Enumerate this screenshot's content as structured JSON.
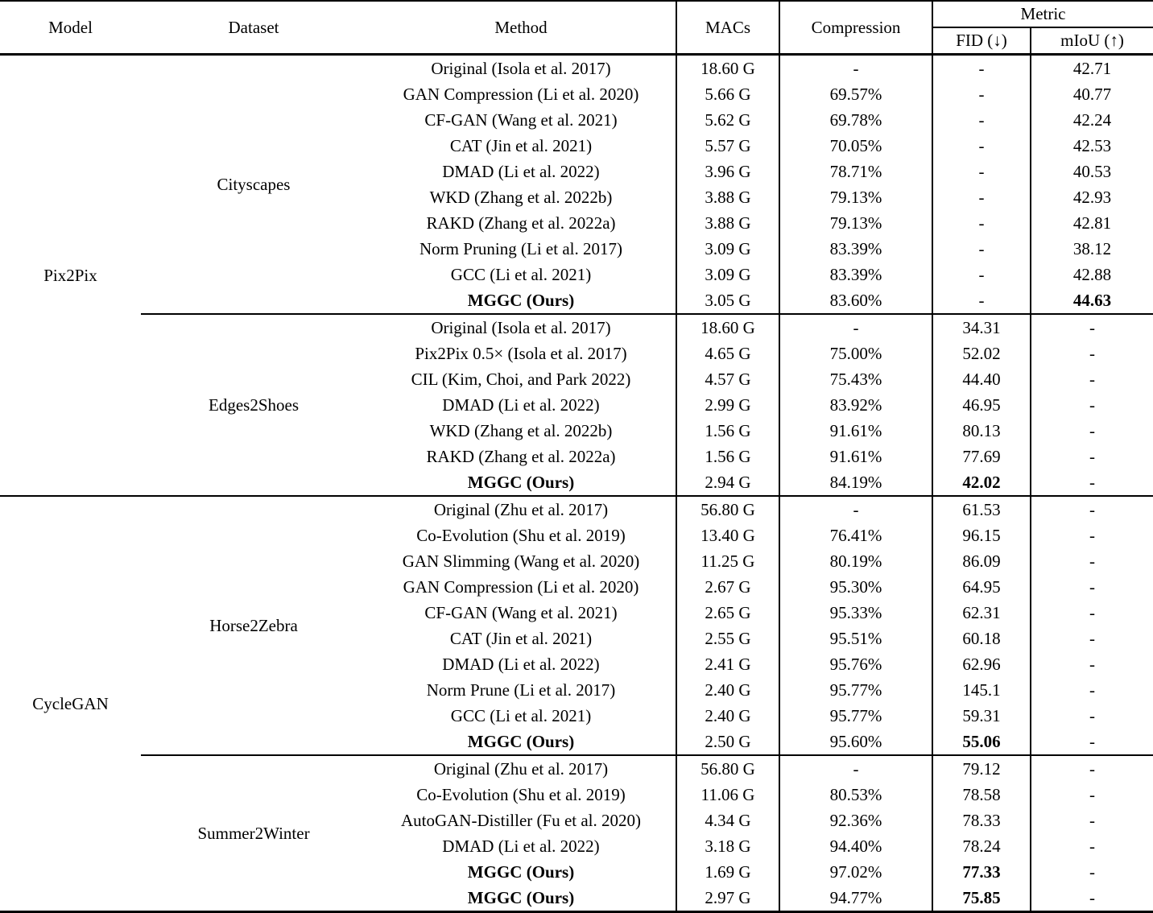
{
  "table": {
    "header": {
      "model": "Model",
      "dataset": "Dataset",
      "method": "Method",
      "macs": "MACs",
      "compression": "Compression",
      "metric_group": "Metric",
      "fid": "FID (↓)",
      "miou": "mIoU (↑)"
    },
    "groups": [
      {
        "model": "Pix2Pix",
        "datasets": [
          {
            "name": "Cityscapes",
            "rows": [
              {
                "method": "Original (Isola et al. 2017)",
                "macs": "18.60 G",
                "compression": "-",
                "fid": "-",
                "miou": "42.71"
              },
              {
                "method": "GAN Compression (Li et al. 2020)",
                "macs": "5.66 G",
                "compression": "69.57%",
                "fid": "-",
                "miou": "40.77"
              },
              {
                "method": "CF-GAN (Wang et al. 2021)",
                "macs": "5.62 G",
                "compression": "69.78%",
                "fid": "-",
                "miou": "42.24"
              },
              {
                "method": "CAT (Jin et al. 2021)",
                "macs": "5.57 G",
                "compression": "70.05%",
                "fid": "-",
                "miou": "42.53"
              },
              {
                "method": "DMAD (Li et al. 2022)",
                "macs": "3.96 G",
                "compression": "78.71%",
                "fid": "-",
                "miou": "40.53"
              },
              {
                "method": "WKD (Zhang et al. 2022b)",
                "macs": "3.88 G",
                "compression": "79.13%",
                "fid": "-",
                "miou": "42.93"
              },
              {
                "method": "RAKD (Zhang et al. 2022a)",
                "macs": "3.88 G",
                "compression": "79.13%",
                "fid": "-",
                "miou": "42.81"
              },
              {
                "method": "Norm Pruning (Li et al. 2017)",
                "macs": "3.09 G",
                "compression": "83.39%",
                "fid": "-",
                "miou": "38.12"
              },
              {
                "method": "GCC (Li et al. 2021)",
                "macs": "3.09 G",
                "compression": "83.39%",
                "fid": "-",
                "miou": "42.88"
              },
              {
                "method": "MGGC (Ours)",
                "macs": "3.05 G",
                "compression": "83.60%",
                "fid": "-",
                "miou": "44.63",
                "bold_method": true,
                "bold_miou": true
              }
            ]
          },
          {
            "name": "Edges2Shoes",
            "rows": [
              {
                "method": "Original (Isola et al. 2017)",
                "macs": "18.60 G",
                "compression": "-",
                "fid": "34.31",
                "miou": "-"
              },
              {
                "method": "Pix2Pix 0.5× (Isola et al. 2017)",
                "macs": "4.65 G",
                "compression": "75.00%",
                "fid": "52.02",
                "miou": "-"
              },
              {
                "method": "CIL (Kim, Choi, and Park 2022)",
                "macs": "4.57 G",
                "compression": "75.43%",
                "fid": "44.40",
                "miou": "-"
              },
              {
                "method": "DMAD (Li et al. 2022)",
                "macs": "2.99 G",
                "compression": "83.92%",
                "fid": "46.95",
                "miou": "-"
              },
              {
                "method": "WKD (Zhang et al. 2022b)",
                "macs": "1.56 G",
                "compression": "91.61%",
                "fid": "80.13",
                "miou": "-"
              },
              {
                "method": "RAKD (Zhang et al. 2022a)",
                "macs": "1.56 G",
                "compression": "91.61%",
                "fid": "77.69",
                "miou": "-"
              },
              {
                "method": "MGGC (Ours)",
                "macs": "2.94 G",
                "compression": "84.19%",
                "fid": "42.02",
                "miou": "-",
                "bold_method": true,
                "bold_fid": true
              }
            ]
          }
        ]
      },
      {
        "model": "CycleGAN",
        "datasets": [
          {
            "name": "Horse2Zebra",
            "rows": [
              {
                "method": "Original (Zhu et al. 2017)",
                "macs": "56.80 G",
                "compression": "-",
                "fid": "61.53",
                "miou": "-"
              },
              {
                "method": "Co-Evolution (Shu et al. 2019)",
                "macs": "13.40 G",
                "compression": "76.41%",
                "fid": "96.15",
                "miou": "-"
              },
              {
                "method": "GAN Slimming (Wang et al. 2020)",
                "macs": "11.25 G",
                "compression": "80.19%",
                "fid": "86.09",
                "miou": "-"
              },
              {
                "method": "GAN Compression (Li et al. 2020)",
                "macs": "2.67 G",
                "compression": "95.30%",
                "fid": "64.95",
                "miou": "-"
              },
              {
                "method": "CF-GAN (Wang et al. 2021)",
                "macs": "2.65 G",
                "compression": "95.33%",
                "fid": "62.31",
                "miou": "-"
              },
              {
                "method": "CAT (Jin et al. 2021)",
                "macs": "2.55 G",
                "compression": "95.51%",
                "fid": "60.18",
                "miou": "-"
              },
              {
                "method": "DMAD (Li et al. 2022)",
                "macs": "2.41 G",
                "compression": "95.76%",
                "fid": "62.96",
                "miou": "-"
              },
              {
                "method": "Norm Prune (Li et al. 2017)",
                "macs": "2.40 G",
                "compression": "95.77%",
                "fid": "145.1",
                "miou": "-"
              },
              {
                "method": "GCC (Li et al. 2021)",
                "macs": "2.40 G",
                "compression": "95.77%",
                "fid": "59.31",
                "miou": "-"
              },
              {
                "method": "MGGC (Ours)",
                "macs": "2.50 G",
                "compression": "95.60%",
                "fid": "55.06",
                "miou": "-",
                "bold_method": true,
                "bold_fid": true
              }
            ]
          },
          {
            "name": "Summer2Winter",
            "rows": [
              {
                "method": "Original (Zhu et al. 2017)",
                "macs": "56.80 G",
                "compression": "-",
                "fid": "79.12",
                "miou": "-"
              },
              {
                "method": "Co-Evolution (Shu et al. 2019)",
                "macs": "11.06 G",
                "compression": "80.53%",
                "fid": "78.58",
                "miou": "-"
              },
              {
                "method": "AutoGAN-Distiller (Fu et al. 2020)",
                "macs": "4.34 G",
                "compression": "92.36%",
                "fid": "78.33",
                "miou": "-"
              },
              {
                "method": "DMAD (Li et al. 2022)",
                "macs": "3.18 G",
                "compression": "94.40%",
                "fid": "78.24",
                "miou": "-"
              },
              {
                "method": "MGGC (Ours)",
                "macs": "1.69 G",
                "compression": "97.02%",
                "fid": "77.33",
                "miou": "-",
                "bold_method": true,
                "bold_fid": true
              },
              {
                "method": "MGGC (Ours)",
                "macs": "2.97 G",
                "compression": "94.77%",
                "fid": "75.85",
                "miou": "-",
                "bold_method": true,
                "bold_fid": true
              }
            ]
          }
        ]
      }
    ]
  }
}
